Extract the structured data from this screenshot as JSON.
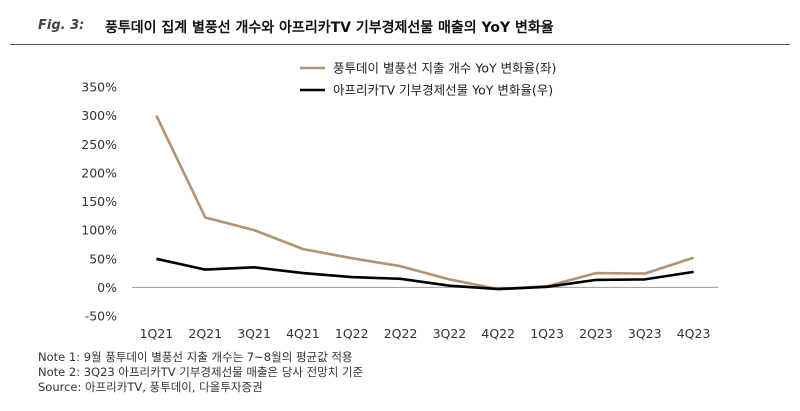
{
  "figure": {
    "label": "Fig. 3:",
    "title": "풍투데이 집계 별풍선 개수와 아프리카TV 기부경제선물 매출의 YoY 변화율"
  },
  "chart_data": {
    "type": "line",
    "categories": [
      "1Q21",
      "2Q21",
      "3Q21",
      "4Q21",
      "1Q22",
      "2Q22",
      "3Q22",
      "4Q22",
      "1Q23",
      "2Q23",
      "3Q23",
      "4Q23"
    ],
    "series": [
      {
        "name": "풍투데이 별풍선 지출 개수 YoY 변화율(좌)",
        "color": "#b39370",
        "values": [
          300,
          122,
          100,
          67,
          51,
          37,
          14,
          -3,
          2,
          25,
          24,
          52
        ]
      },
      {
        "name": "아프리카TV 기부경제선물 YoY 변화율(우)",
        "color": "#000000",
        "values": [
          50,
          31,
          35,
          25,
          18,
          15,
          3,
          -3,
          1,
          13,
          14,
          27
        ]
      }
    ],
    "y_ticks": [
      "350%",
      "300%",
      "250%",
      "200%",
      "150%",
      "100%",
      "50%",
      "0%",
      "-50%"
    ],
    "ylim": [
      -50,
      350
    ],
    "legend_position": "top-center",
    "grid": false
  },
  "notes": [
    "Note 1: 9월 풍투데이 별풍선 지출 개수는 7~8월의 평균값 적용",
    "Note 2: 3Q23 아프리카TV 기부경제선물 매출은 당사 전망치 기준",
    "Source: 아프리카TV, 풍투데이, 다올투자증권"
  ]
}
